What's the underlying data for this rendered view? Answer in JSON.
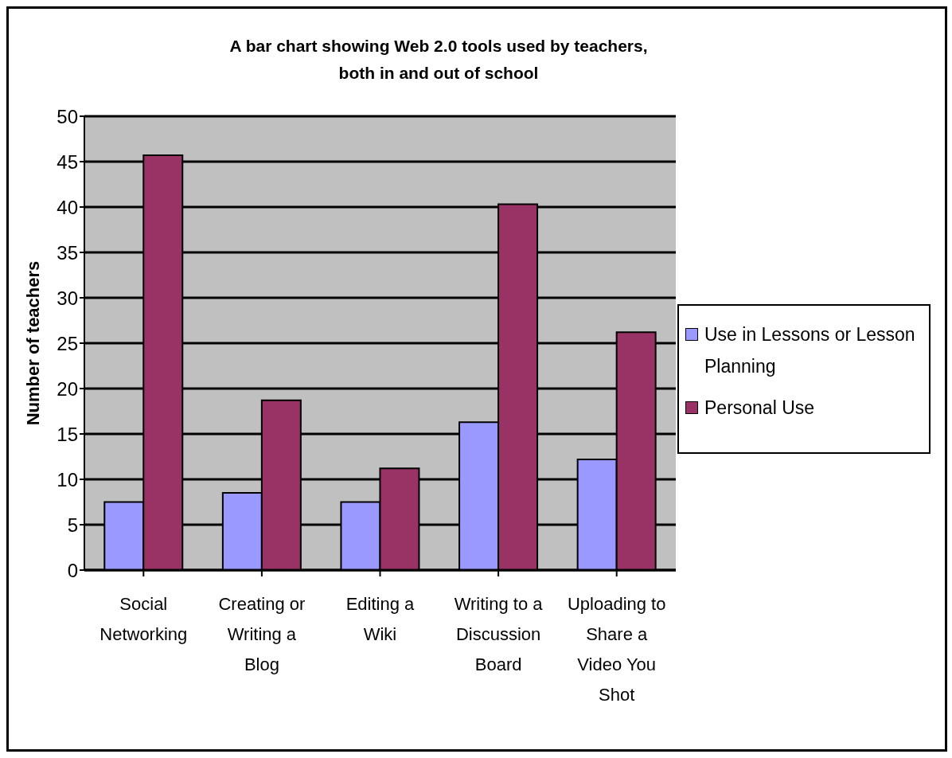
{
  "chart_data": {
    "type": "bar",
    "title": "A bar chart showing Web 2.0 tools used by teachers, both in and out of school",
    "ylabel": "Number of teachers",
    "categories": [
      "Social Networking",
      "Creating or Writing a Blog",
      "Editing a Wiki",
      "Writing to a Discussion Board",
      "Uploading to Share a Video You Shot"
    ],
    "series": [
      {
        "name": "Use in Lessons or Lesson Planning",
        "color": "#9999ff",
        "values": [
          7.5,
          8.5,
          7.5,
          16.3,
          12.2
        ]
      },
      {
        "name": "Personal Use",
        "color": "#993366",
        "values": [
          45.7,
          18.7,
          11.2,
          40.3,
          26.2
        ]
      }
    ],
    "ylim": [
      0,
      50
    ],
    "yticks": [
      0,
      5,
      10,
      15,
      20,
      25,
      30,
      35,
      40,
      45,
      50
    ],
    "grid": "y",
    "legend": "right"
  }
}
